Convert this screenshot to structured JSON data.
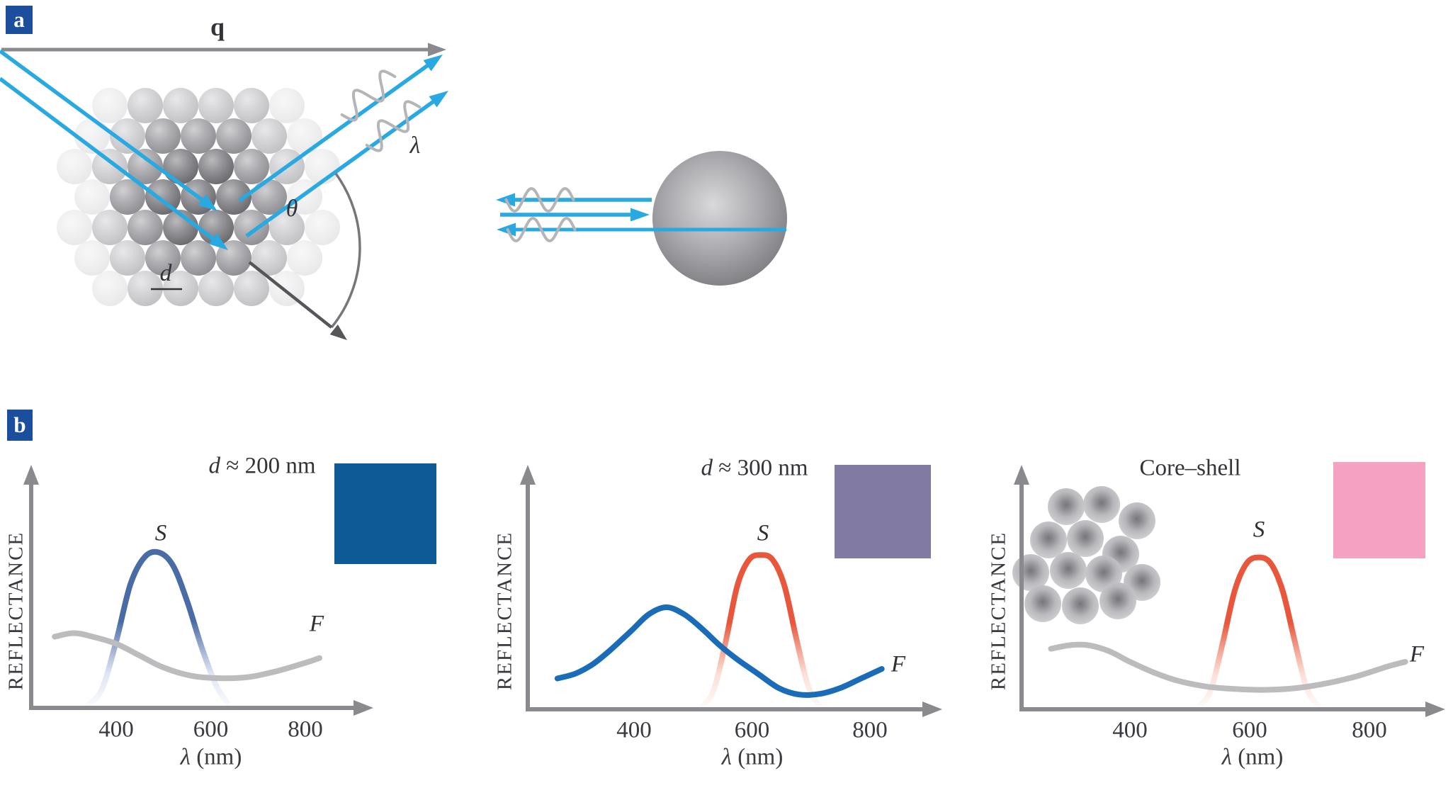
{
  "figure": {
    "background": "#FFFFFF",
    "description_visible_text_only": true
  },
  "panel_a": {
    "label": "a",
    "scattering_vector_label": "q",
    "wavelength_label": "λ",
    "angle_label": "θ",
    "diameter_label": "d"
  },
  "panel_b": {
    "label": "b"
  },
  "colors": {
    "panel_badge": "#1B4F9E",
    "ray_blue": "#29A9E1",
    "axis_gray": "#8A8A8E",
    "wave_gray": "#B5B5B8",
    "dark_arrow": "#55555A",
    "arc_gray": "#77777B",
    "text": "#333338"
  },
  "chart_data": [
    {
      "type": "line",
      "title_var": "d",
      "title_rest": " ≈ 200 nm",
      "ylabel": "REFLECTANCE",
      "xlabel_var": "λ",
      "xlabel_rest": " (nm)",
      "x_ticks": [
        400,
        600,
        800
      ],
      "xlim": [
        250,
        900
      ],
      "grid": false,
      "swatch_color": "#0E5A96",
      "series": [
        {
          "name": "S",
          "color": "#4A6CA6",
          "fade_color": "#D9E0F0",
          "fade": true,
          "peak_nm": 490,
          "points": [
            [
              340,
              0.01
            ],
            [
              370,
              0.08
            ],
            [
              400,
              0.28
            ],
            [
              430,
              0.52
            ],
            [
              460,
              0.635
            ],
            [
              490,
              0.655
            ],
            [
              520,
              0.6
            ],
            [
              550,
              0.45
            ],
            [
              580,
              0.26
            ],
            [
              610,
              0.1
            ],
            [
              635,
              0.02
            ]
          ]
        },
        {
          "name": "F",
          "color": "#BCBCBF",
          "fade": false,
          "points": [
            [
              270,
              0.3
            ],
            [
              310,
              0.315
            ],
            [
              350,
              0.3
            ],
            [
              400,
              0.27
            ],
            [
              450,
              0.22
            ],
            [
              500,
              0.17
            ],
            [
              560,
              0.135
            ],
            [
              620,
              0.125
            ],
            [
              680,
              0.13
            ],
            [
              740,
              0.155
            ],
            [
              800,
              0.19
            ],
            [
              830,
              0.21
            ]
          ]
        }
      ]
    },
    {
      "type": "line",
      "title_var": "d",
      "title_rest": " ≈ 300 nm",
      "ylabel": "REFLECTANCE",
      "xlabel_var": "λ",
      "xlabel_rest": " (nm)",
      "x_ticks": [
        400,
        600,
        800
      ],
      "xlim": [
        250,
        900
      ],
      "grid": false,
      "swatch_color": "#817BA3",
      "series": [
        {
          "name": "S",
          "color": "#E8573B",
          "fade_color": "#FADBD2",
          "fade": true,
          "peak_nm": 615,
          "points": [
            [
              515,
              0.01
            ],
            [
              535,
              0.08
            ],
            [
              555,
              0.28
            ],
            [
              575,
              0.52
            ],
            [
              595,
              0.63
            ],
            [
              615,
              0.65
            ],
            [
              635,
              0.63
            ],
            [
              655,
              0.52
            ],
            [
              675,
              0.3
            ],
            [
              695,
              0.1
            ],
            [
              715,
              0.01
            ]
          ]
        },
        {
          "name": "F",
          "color": "#1A6CB8",
          "fade": false,
          "points": [
            [
              270,
              0.13
            ],
            [
              300,
              0.15
            ],
            [
              330,
              0.19
            ],
            [
              360,
              0.25
            ],
            [
              395,
              0.33
            ],
            [
              425,
              0.4
            ],
            [
              455,
              0.43
            ],
            [
              485,
              0.4
            ],
            [
              515,
              0.34
            ],
            [
              545,
              0.27
            ],
            [
              575,
              0.21
            ],
            [
              610,
              0.15
            ],
            [
              645,
              0.09
            ],
            [
              680,
              0.062
            ],
            [
              715,
              0.065
            ],
            [
              750,
              0.09
            ],
            [
              785,
              0.13
            ],
            [
              820,
              0.17
            ]
          ]
        }
      ]
    },
    {
      "type": "line",
      "title_var": null,
      "title_rest": "Core–shell",
      "ylabel": "REFLECTANCE",
      "xlabel_var": "λ",
      "xlabel_rest": " (nm)",
      "x_ticks": [
        400,
        600,
        800
      ],
      "xlim": [
        250,
        900
      ],
      "grid": false,
      "swatch_color": "#F4A1C2",
      "icon": "core-shell-cluster",
      "series": [
        {
          "name": "S",
          "color": "#E8573B",
          "fade_color": "#FADBD2",
          "fade": true,
          "peak_nm": 615,
          "points": [
            [
              515,
              0.01
            ],
            [
              535,
              0.08
            ],
            [
              555,
              0.28
            ],
            [
              575,
              0.5
            ],
            [
              595,
              0.615
            ],
            [
              615,
              0.64
            ],
            [
              635,
              0.615
            ],
            [
              655,
              0.5
            ],
            [
              675,
              0.29
            ],
            [
              695,
              0.09
            ],
            [
              715,
              0.01
            ]
          ]
        },
        {
          "name": "F",
          "color": "#BCBCBF",
          "fade": false,
          "points": [
            [
              268,
              0.255
            ],
            [
              300,
              0.27
            ],
            [
              330,
              0.27
            ],
            [
              365,
              0.245
            ],
            [
              400,
              0.2
            ],
            [
              440,
              0.155
            ],
            [
              480,
              0.12
            ],
            [
              530,
              0.095
            ],
            [
              580,
              0.085
            ],
            [
              630,
              0.082
            ],
            [
              680,
              0.09
            ],
            [
              730,
              0.11
            ],
            [
              780,
              0.14
            ],
            [
              830,
              0.18
            ],
            [
              860,
              0.2
            ]
          ]
        }
      ]
    }
  ]
}
